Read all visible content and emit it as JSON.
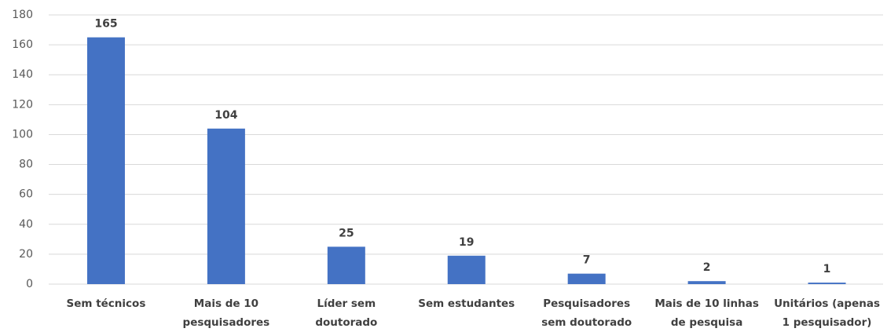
{
  "chart_data": {
    "type": "bar",
    "categories": [
      "Sem técnicos",
      "Mais de 10 pesquisadores",
      "Líder sem doutorado",
      "Sem estudantes",
      "Pesquisadores sem doutorado",
      "Mais de 10 linhas de pesquisa",
      "Unitários (apenas 1 pesquisador)"
    ],
    "values": [
      165,
      104,
      25,
      19,
      7,
      2,
      1
    ],
    "color": "#4472c4",
    "ylim": [
      0,
      180
    ],
    "yticks": [
      0,
      20,
      40,
      60,
      80,
      100,
      120,
      140,
      160,
      180
    ],
    "grid": true
  }
}
